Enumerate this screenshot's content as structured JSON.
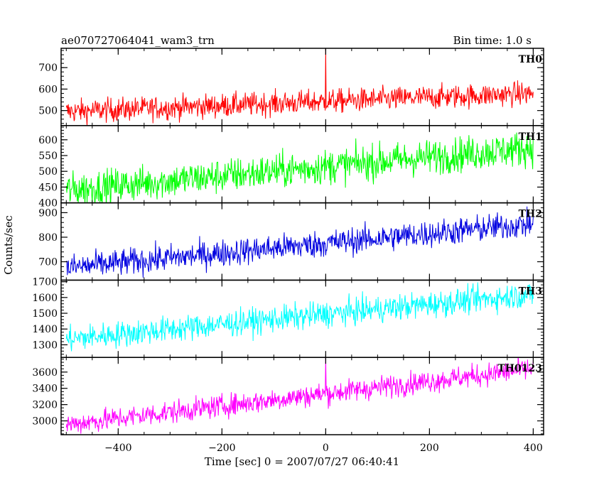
{
  "header": {
    "title": "ae070727064041_wam3_trn",
    "bin_time": "Bin time: 1.0 s"
  },
  "chart_data": {
    "type": "line",
    "xlabel": "Time [sec] 0 = 2007/07/27 06:40:41",
    "ylabel": "Counts/sec",
    "xlim": [
      -510,
      420
    ],
    "x_ticks": [
      -400,
      -200,
      0,
      200,
      400
    ],
    "x_tick_labels": [
      "−400",
      "−200",
      "0",
      "200",
      "400"
    ],
    "x_start": -500,
    "x_end": 400,
    "bin": 1.0,
    "panels": [
      {
        "name": "TH0",
        "color": "#ff0000",
        "ylim": [
          430,
          790
        ],
        "y_ticks": [
          500,
          600,
          700
        ],
        "start_mean": 495,
        "end_mean": 580,
        "noise": 28,
        "spike": {
          "x": 0,
          "y": 790
        }
      },
      {
        "name": "TH1",
        "color": "#00ff00",
        "ylim": [
          400,
          645
        ],
        "y_ticks": [
          400,
          450,
          500,
          550,
          600
        ],
        "start_mean": 440,
        "end_mean": 575,
        "noise": 28
      },
      {
        "name": "TH2",
        "color": "#0000e0",
        "ylim": [
          625,
          940
        ],
        "y_ticks": [
          700,
          800,
          900
        ],
        "start_mean": 675,
        "end_mean": 855,
        "noise": 28
      },
      {
        "name": "TH3",
        "color": "#00ffff",
        "ylim": [
          1220,
          1710
        ],
        "y_ticks": [
          1300,
          1400,
          1500,
          1600,
          1700
        ],
        "start_mean": 1335,
        "end_mean": 1620,
        "noise": 42
      },
      {
        "name": "TH0123",
        "color": "#ff00ff",
        "ylim": [
          2830,
          3780
        ],
        "y_ticks": [
          3000,
          3200,
          3400,
          3600
        ],
        "start_mean": 2955,
        "end_mean": 3640,
        "noise": 70,
        "spike": {
          "x": 0,
          "y": 3780
        }
      }
    ]
  }
}
